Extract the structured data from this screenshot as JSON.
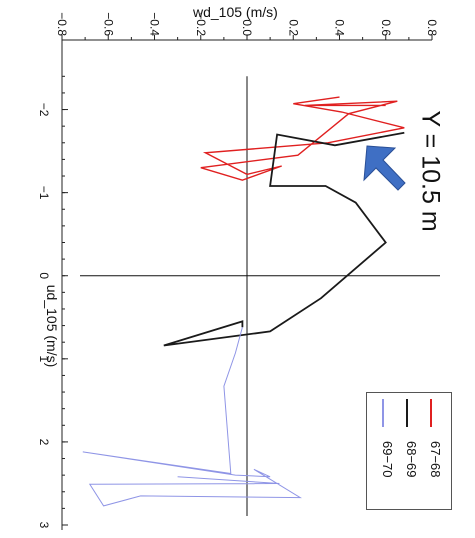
{
  "chart_data": {
    "type": "line",
    "title": "",
    "xlabel": "wd_105 (m/s)",
    "ylabel": "ud_105 (m/s)",
    "annotation": "Y = 10.5 m",
    "xlim": [
      -0.8,
      0.8
    ],
    "ylim": [
      -2.5,
      3
    ],
    "x_ticks": [
      "−0.8",
      "−0.6",
      "−0.4",
      "−0.2",
      "0.0",
      "0.2",
      "0.4",
      "0.6",
      "0.8"
    ],
    "y_ticks": [
      "−2",
      "−1",
      "0",
      "1",
      "2",
      "3"
    ],
    "legend_placement": "bottom-right",
    "arrow_color": "#3f6fc4",
    "series": [
      {
        "name": "67−68",
        "color": "#e02020",
        "points": [
          [
            0.4,
            -2.15
          ],
          [
            0.2,
            -2.07
          ],
          [
            0.41,
            -1.97
          ],
          [
            0.68,
            -1.78
          ],
          [
            0.35,
            -1.6
          ],
          [
            -0.18,
            -1.48
          ],
          [
            0.0,
            -1.22
          ],
          [
            0.15,
            -1.32
          ],
          [
            -0.02,
            -1.15
          ],
          [
            -0.2,
            -1.3
          ],
          [
            0.22,
            -1.45
          ],
          [
            0.44,
            -1.95
          ],
          [
            0.65,
            -2.1
          ],
          [
            0.25,
            -2.05
          ],
          [
            0.6,
            -2.05
          ]
        ]
      },
      {
        "name": "68−69",
        "color": "#1a1a1a",
        "points": [
          [
            0.68,
            -1.72
          ],
          [
            0.38,
            -1.57
          ],
          [
            0.13,
            -1.7
          ],
          [
            0.1,
            -1.08
          ],
          [
            0.34,
            -1.08
          ],
          [
            0.47,
            -0.88
          ],
          [
            0.6,
            -0.4
          ],
          [
            0.32,
            0.27
          ],
          [
            0.1,
            0.67
          ],
          [
            -0.36,
            0.84
          ],
          [
            -0.02,
            0.55
          ],
          [
            -0.02,
            0.62
          ]
        ]
      },
      {
        "name": "69−70",
        "color": "#8f95e6",
        "points": [
          [
            -0.02,
            0.62
          ],
          [
            -0.05,
            0.93
          ],
          [
            -0.1,
            1.33
          ],
          [
            -0.07,
            2.38
          ],
          [
            -0.71,
            2.12
          ],
          [
            -0.05,
            2.4
          ],
          [
            0.1,
            2.42
          ],
          [
            0.03,
            2.33
          ],
          [
            0.23,
            2.67
          ],
          [
            -0.46,
            2.65
          ],
          [
            -0.62,
            2.77
          ],
          [
            -0.68,
            2.51
          ],
          [
            0.14,
            2.5
          ],
          [
            -0.3,
            2.42
          ]
        ]
      }
    ]
  }
}
